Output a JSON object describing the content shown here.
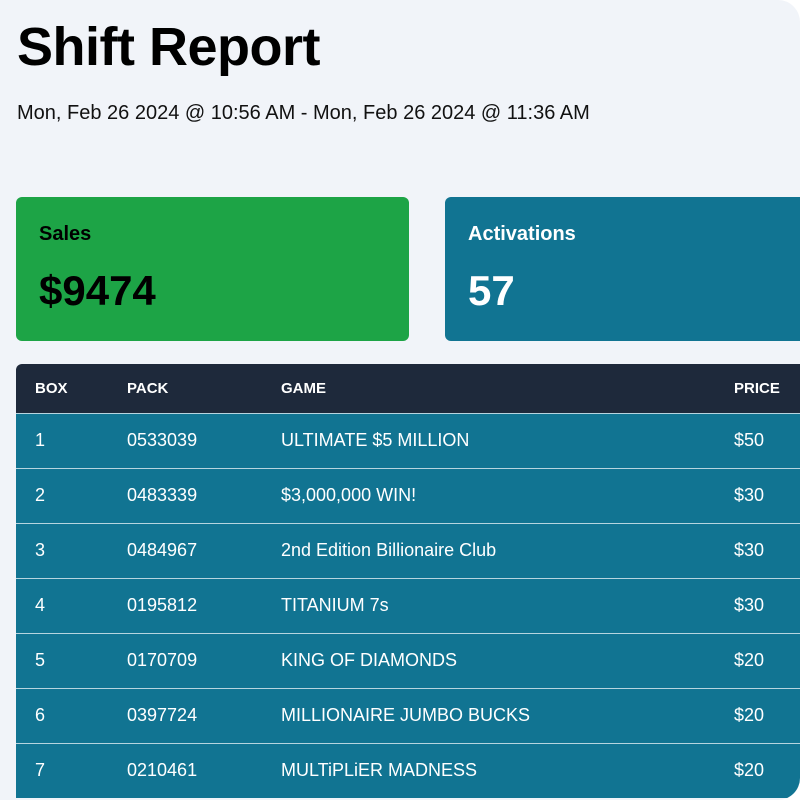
{
  "header": {
    "title": "Shift Report",
    "date_range": "Mon, Feb 26 2024 @ 10:56 AM - Mon, Feb 26 2024 @ 11:36 AM"
  },
  "cards": {
    "sales": {
      "label": "Sales",
      "value": "$9474",
      "color": "#1da446"
    },
    "activations": {
      "label": "Activations",
      "value": "57",
      "color": "#117492"
    }
  },
  "table": {
    "headers": {
      "box": "BOX",
      "pack": "PACK",
      "game": "GAME",
      "price": "PRICE"
    },
    "header_color": "#1e293b",
    "row_color": "#117492",
    "rows": [
      {
        "box": "1",
        "pack": "0533039",
        "game": "ULTIMATE $5 MILLION",
        "price": "$50"
      },
      {
        "box": "2",
        "pack": "0483339",
        "game": "$3,000,000 WIN!",
        "price": "$30"
      },
      {
        "box": "3",
        "pack": "0484967",
        "game": "2nd Edition Billionaire Club",
        "price": "$30"
      },
      {
        "box": "4",
        "pack": "0195812",
        "game": "TITANIUM 7s",
        "price": "$30"
      },
      {
        "box": "5",
        "pack": "0170709",
        "game": "KING OF DIAMONDS",
        "price": "$20"
      },
      {
        "box": "6",
        "pack": "0397724",
        "game": "MILLIONAIRE JUMBO BUCKS",
        "price": "$20"
      },
      {
        "box": "7",
        "pack": "0210461",
        "game": "MULTiPLiER MADNESS",
        "price": "$20"
      }
    ]
  }
}
